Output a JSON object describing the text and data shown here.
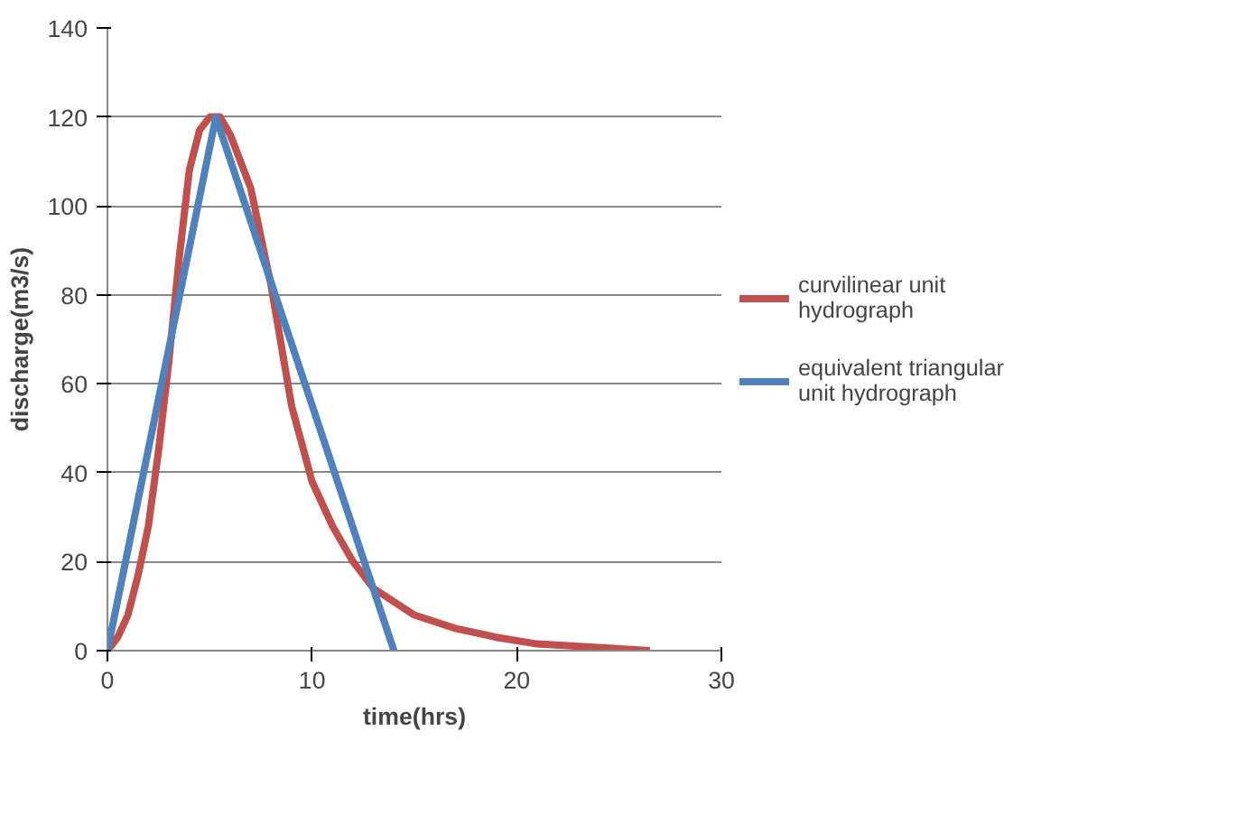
{
  "chart_data": {
    "type": "line",
    "xlabel": "time(hrs)",
    "ylabel": "discharge(m3/s)",
    "xlim": [
      0,
      30
    ],
    "xticks": [
      0,
      10,
      20,
      30
    ],
    "ylim": [
      0,
      140
    ],
    "yticks": [
      0,
      20,
      40,
      60,
      80,
      100,
      120,
      140
    ],
    "grid": "y",
    "legend": "right",
    "marker": "none",
    "line_style": "solid",
    "series": [
      {
        "name": "curvilinear unit hydrograph",
        "color": "#c0504d",
        "x": [
          0,
          0.5,
          1,
          1.5,
          2,
          2.5,
          3,
          3.5,
          4,
          4.5,
          5,
          5.5,
          6,
          7,
          8,
          9,
          10,
          11,
          12,
          13,
          15,
          17,
          19,
          21,
          24,
          26.5
        ],
        "values": [
          0,
          3,
          8,
          17,
          28,
          45,
          65,
          88,
          108,
          117,
          120,
          120,
          116,
          104,
          82,
          55,
          38,
          28,
          20,
          14,
          8,
          5,
          3,
          1.5,
          0.7,
          0
        ]
      },
      {
        "name": "equivalent triangular unit hydrograph",
        "color": "#4f81bd",
        "x": [
          0,
          5.3,
          14
        ],
        "values": [
          0,
          120,
          0
        ]
      }
    ]
  }
}
